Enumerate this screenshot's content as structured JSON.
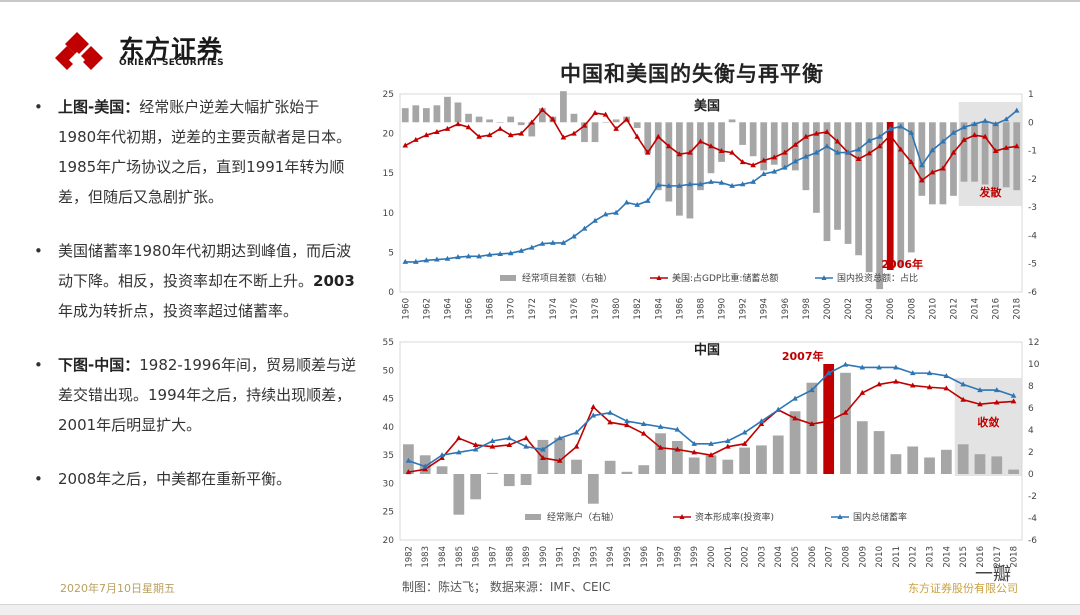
{
  "logo": {
    "cn": "东方证券",
    "en": "ORIENT SECURITIES"
  },
  "bullets": [
    {
      "bold": "上图-美国：",
      "text": "经常账户逆差大幅扩张始于1980年代初期，逆差的主要贡献者是日本。1985年广场协议之后，直到1991年转为顺差，但随后又急剧扩张。",
      "bold2": "",
      "text2": ""
    },
    {
      "bold": "",
      "text": "美国储蓄率1980年代初期达到峰值，而后波动下降。相反，投资率却在不断上升。",
      "bold2": "2003",
      "text2": "年成为转折点，投资率超过储蓄率。"
    },
    {
      "bold": "下图-中国：",
      "text": "1982-1996年间，贸易顺差与逆差交错出现。1994年之后，持续出现顺差，2001年后明显扩大。",
      "bold2": "",
      "text2": ""
    },
    {
      "bold": "",
      "text": "2008年之后，中美都在重新平衡。",
      "bold2": "",
      "text2": ""
    }
  ],
  "footer": {
    "date": "2020年7月10日星期五",
    "source": "制图：陈达飞；    数据来源：IMF、CEIC",
    "company": "东方证券股份有限公司"
  },
  "watermark": "一瓣",
  "chart_title": "中国和美国的失衡与再平衡",
  "colors": {
    "bar": "#a6a6a6",
    "highlight_bar": "#c00000",
    "saving": "#c00000",
    "investment": "#2e75b6",
    "shade": "#d9d9d9",
    "annotation": "#c00000"
  },
  "chart_data": [
    {
      "type": "bar+line",
      "title": "美国",
      "years": [
        "1960",
        "1961",
        "1962",
        "1963",
        "1964",
        "1965",
        "1966",
        "1967",
        "1968",
        "1969",
        "1970",
        "1971",
        "1972",
        "1973",
        "1974",
        "1975",
        "1976",
        "1977",
        "1978",
        "1979",
        "1980",
        "1981",
        "1982",
        "1983",
        "1984",
        "1985",
        "1986",
        "1987",
        "1988",
        "1989",
        "1990",
        "1991",
        "1992",
        "1993",
        "1994",
        "1995",
        "1996",
        "1997",
        "1998",
        "1999",
        "2000",
        "2001",
        "2002",
        "2003",
        "2004",
        "2005",
        "2006",
        "2007",
        "2008",
        "2009",
        "2010",
        "2011",
        "2012",
        "2013",
        "2014",
        "2015",
        "2016",
        "2017",
        "2018"
      ],
      "x_tick_labels": [
        "1960",
        "1962",
        "1964",
        "1966",
        "1968",
        "1970",
        "1972",
        "1974",
        "1976",
        "1978",
        "1980",
        "1982",
        "1984",
        "1986",
        "1988",
        "1990",
        "1992",
        "1994",
        "1996",
        "1998",
        "2000",
        "2002",
        "2004",
        "2006",
        "2008",
        "2010",
        "2012",
        "2014",
        "2016",
        "2018"
      ],
      "left_axis": {
        "min": 0,
        "max": 25,
        "ticks": [
          0,
          5,
          10,
          15,
          20,
          25
        ]
      },
      "right_axis": {
        "min": -6,
        "max": 1,
        "ticks": [
          -6,
          -5,
          -4,
          -3,
          -2,
          -1,
          0,
          1
        ]
      },
      "series": [
        {
          "name": "经常项目差额（右轴）",
          "axis": "right",
          "kind": "bar",
          "values": [
            0.5,
            0.6,
            0.5,
            0.6,
            0.9,
            0.7,
            0.3,
            0.2,
            0.1,
            0,
            0.2,
            -0.1,
            -0.5,
            0.5,
            0.2,
            1.1,
            0.3,
            -0.7,
            -0.7,
            0,
            0.1,
            0.2,
            -0.2,
            -1.1,
            -2.4,
            -2.8,
            -3.3,
            -3.4,
            -2.4,
            -1.8,
            -1.4,
            0.1,
            -0.8,
            -1.2,
            -1.7,
            -1.5,
            -1.6,
            -1.7,
            -2.4,
            -3.2,
            -4.2,
            -3.8,
            -4.3,
            -4.7,
            -5.3,
            -5.9,
            -6,
            -5.1,
            -4.6,
            -2.6,
            -2.9,
            -2.9,
            -2.6,
            -2.1,
            -2.1,
            -2.2,
            -2.3,
            -2.3,
            -2.4
          ]
        },
        {
          "name": "美国:占GDP比重:储蓄总额",
          "axis": "left",
          "kind": "line",
          "values": [
            18.5,
            19.2,
            19.8,
            20.2,
            20.6,
            21.2,
            20.8,
            19.6,
            19.8,
            20.6,
            19.8,
            20.0,
            21.4,
            23.0,
            21.8,
            19.5,
            20.0,
            21.0,
            22.6,
            22.4,
            20.6,
            21.8,
            19.6,
            17.6,
            19.6,
            18.4,
            17.4,
            17.6,
            19.0,
            18.4,
            17.8,
            17.6,
            16.4,
            16.0,
            16.6,
            17.0,
            17.6,
            18.6,
            19.6,
            20.0,
            20.2,
            19.0,
            17.6,
            16.8,
            17.5,
            18.4,
            19.8,
            18.0,
            16.4,
            14.1,
            15.1,
            15.6,
            17.6,
            19.2,
            19.8,
            19.6,
            17.8,
            18.2,
            18.4
          ]
        },
        {
          "name": "国内投资总额：占比",
          "axis": "left",
          "kind": "line",
          "values": [
            3.8,
            3.8,
            4.0,
            4.1,
            4.2,
            4.4,
            4.5,
            4.5,
            4.7,
            4.8,
            4.9,
            5.2,
            5.6,
            6.1,
            6.2,
            6.2,
            7.0,
            8.0,
            9.0,
            9.8,
            10.0,
            11.3,
            11.0,
            11.5,
            13.5,
            13.4,
            13.4,
            13.6,
            13.6,
            13.9,
            13.8,
            13.4,
            13.6,
            13.9,
            14.9,
            15.2,
            15.7,
            16.5,
            17.1,
            17.6,
            18.4,
            17.6,
            17.6,
            18.0,
            19.1,
            19.6,
            20.6,
            20.9,
            20.1,
            16.0,
            17.9,
            19.0,
            20.1,
            20.8,
            21.2,
            21.6,
            21.2,
            21.8,
            22.9
          ]
        }
      ],
      "annotations": [
        {
          "text": "2006年",
          "year": "2006"
        },
        {
          "text": "发散",
          "shade_from": "2013",
          "shade_to": "2018"
        }
      ],
      "highlight_year": "2006",
      "legend_position": "bottom"
    },
    {
      "type": "bar+line",
      "title": "中国",
      "years": [
        "1982",
        "1983",
        "1984",
        "1985",
        "1986",
        "1987",
        "1988",
        "1989",
        "1990",
        "1991",
        "1992",
        "1993",
        "1994",
        "1995",
        "1996",
        "1997",
        "1998",
        "1999",
        "2000",
        "2001",
        "2002",
        "2003",
        "2004",
        "2005",
        "2006",
        "2007",
        "2008",
        "2009",
        "2010",
        "2011",
        "2012",
        "2013",
        "2014",
        "2015",
        "2016",
        "2017",
        "2018"
      ],
      "x_tick_labels": [
        "1982",
        "1983",
        "1984",
        "1985",
        "1986",
        "1987",
        "1988",
        "1989",
        "1990",
        "1991",
        "1992",
        "1993",
        "1994",
        "1995",
        "1996",
        "1997",
        "1998",
        "1999",
        "2000",
        "2001",
        "2002",
        "2003",
        "2004",
        "2005",
        "2006",
        "2007",
        "2008",
        "2009",
        "2010",
        "2011",
        "2012",
        "2013",
        "2014",
        "2015",
        "2016",
        "2017",
        "2018"
      ],
      "left_axis": {
        "min": 20,
        "max": 55,
        "ticks": [
          20,
          25,
          30,
          35,
          40,
          45,
          50,
          55
        ]
      },
      "right_axis": {
        "min": -6,
        "max": 12,
        "ticks": [
          -6,
          -4,
          -2,
          0,
          2,
          4,
          6,
          8,
          10,
          12
        ]
      },
      "series": [
        {
          "name": "经常账户（右轴）",
          "axis": "right",
          "kind": "bar",
          "values": [
            2.7,
            1.7,
            0.7,
            -3.7,
            -2.3,
            0.1,
            -1.1,
            -1.0,
            3.1,
            3.3,
            1.3,
            -2.7,
            1.2,
            0.2,
            0.8,
            3.7,
            3.0,
            1.5,
            1.7,
            1.3,
            2.4,
            2.6,
            3.5,
            5.7,
            8.3,
            9.9,
            9.2,
            4.8,
            3.9,
            1.8,
            2.5,
            1.5,
            2.2,
            2.7,
            1.8,
            1.6,
            0.4
          ]
        },
        {
          "name": "资本形成率(投资率)",
          "axis": "left",
          "kind": "line",
          "values": [
            32.0,
            32.5,
            34.5,
            38.0,
            36.8,
            36.5,
            36.8,
            38.0,
            34.5,
            34.0,
            36.5,
            43.5,
            40.8,
            40.3,
            38.8,
            36.3,
            36.0,
            35.5,
            35.0,
            36.5,
            37.0,
            40.5,
            43.0,
            41.5,
            40.5,
            41.0,
            42.5,
            46.0,
            47.5,
            48.0,
            47.3,
            47.0,
            46.8,
            44.8,
            44.0,
            44.3,
            44.5
          ]
        },
        {
          "name": "国内总储蓄率",
          "axis": "left",
          "kind": "line",
          "values": [
            34.0,
            33.0,
            35.0,
            35.5,
            36.0,
            37.5,
            38.0,
            36.5,
            36.0,
            38.0,
            39.0,
            42.0,
            42.5,
            41.0,
            40.5,
            40.0,
            39.5,
            37.0,
            37.0,
            37.5,
            39.0,
            41.0,
            43.0,
            45.0,
            46.5,
            49.5,
            51.0,
            50.5,
            50.5,
            50.5,
            49.5,
            49.5,
            49.0,
            47.5,
            46.5,
            46.5,
            45.5
          ]
        }
      ],
      "annotations": [
        {
          "text": "2007年",
          "year": "2007"
        },
        {
          "text": "收敛",
          "shade_from": "2015",
          "shade_to": "2018"
        }
      ],
      "highlight_year": "2007",
      "legend_position": "bottom"
    }
  ]
}
